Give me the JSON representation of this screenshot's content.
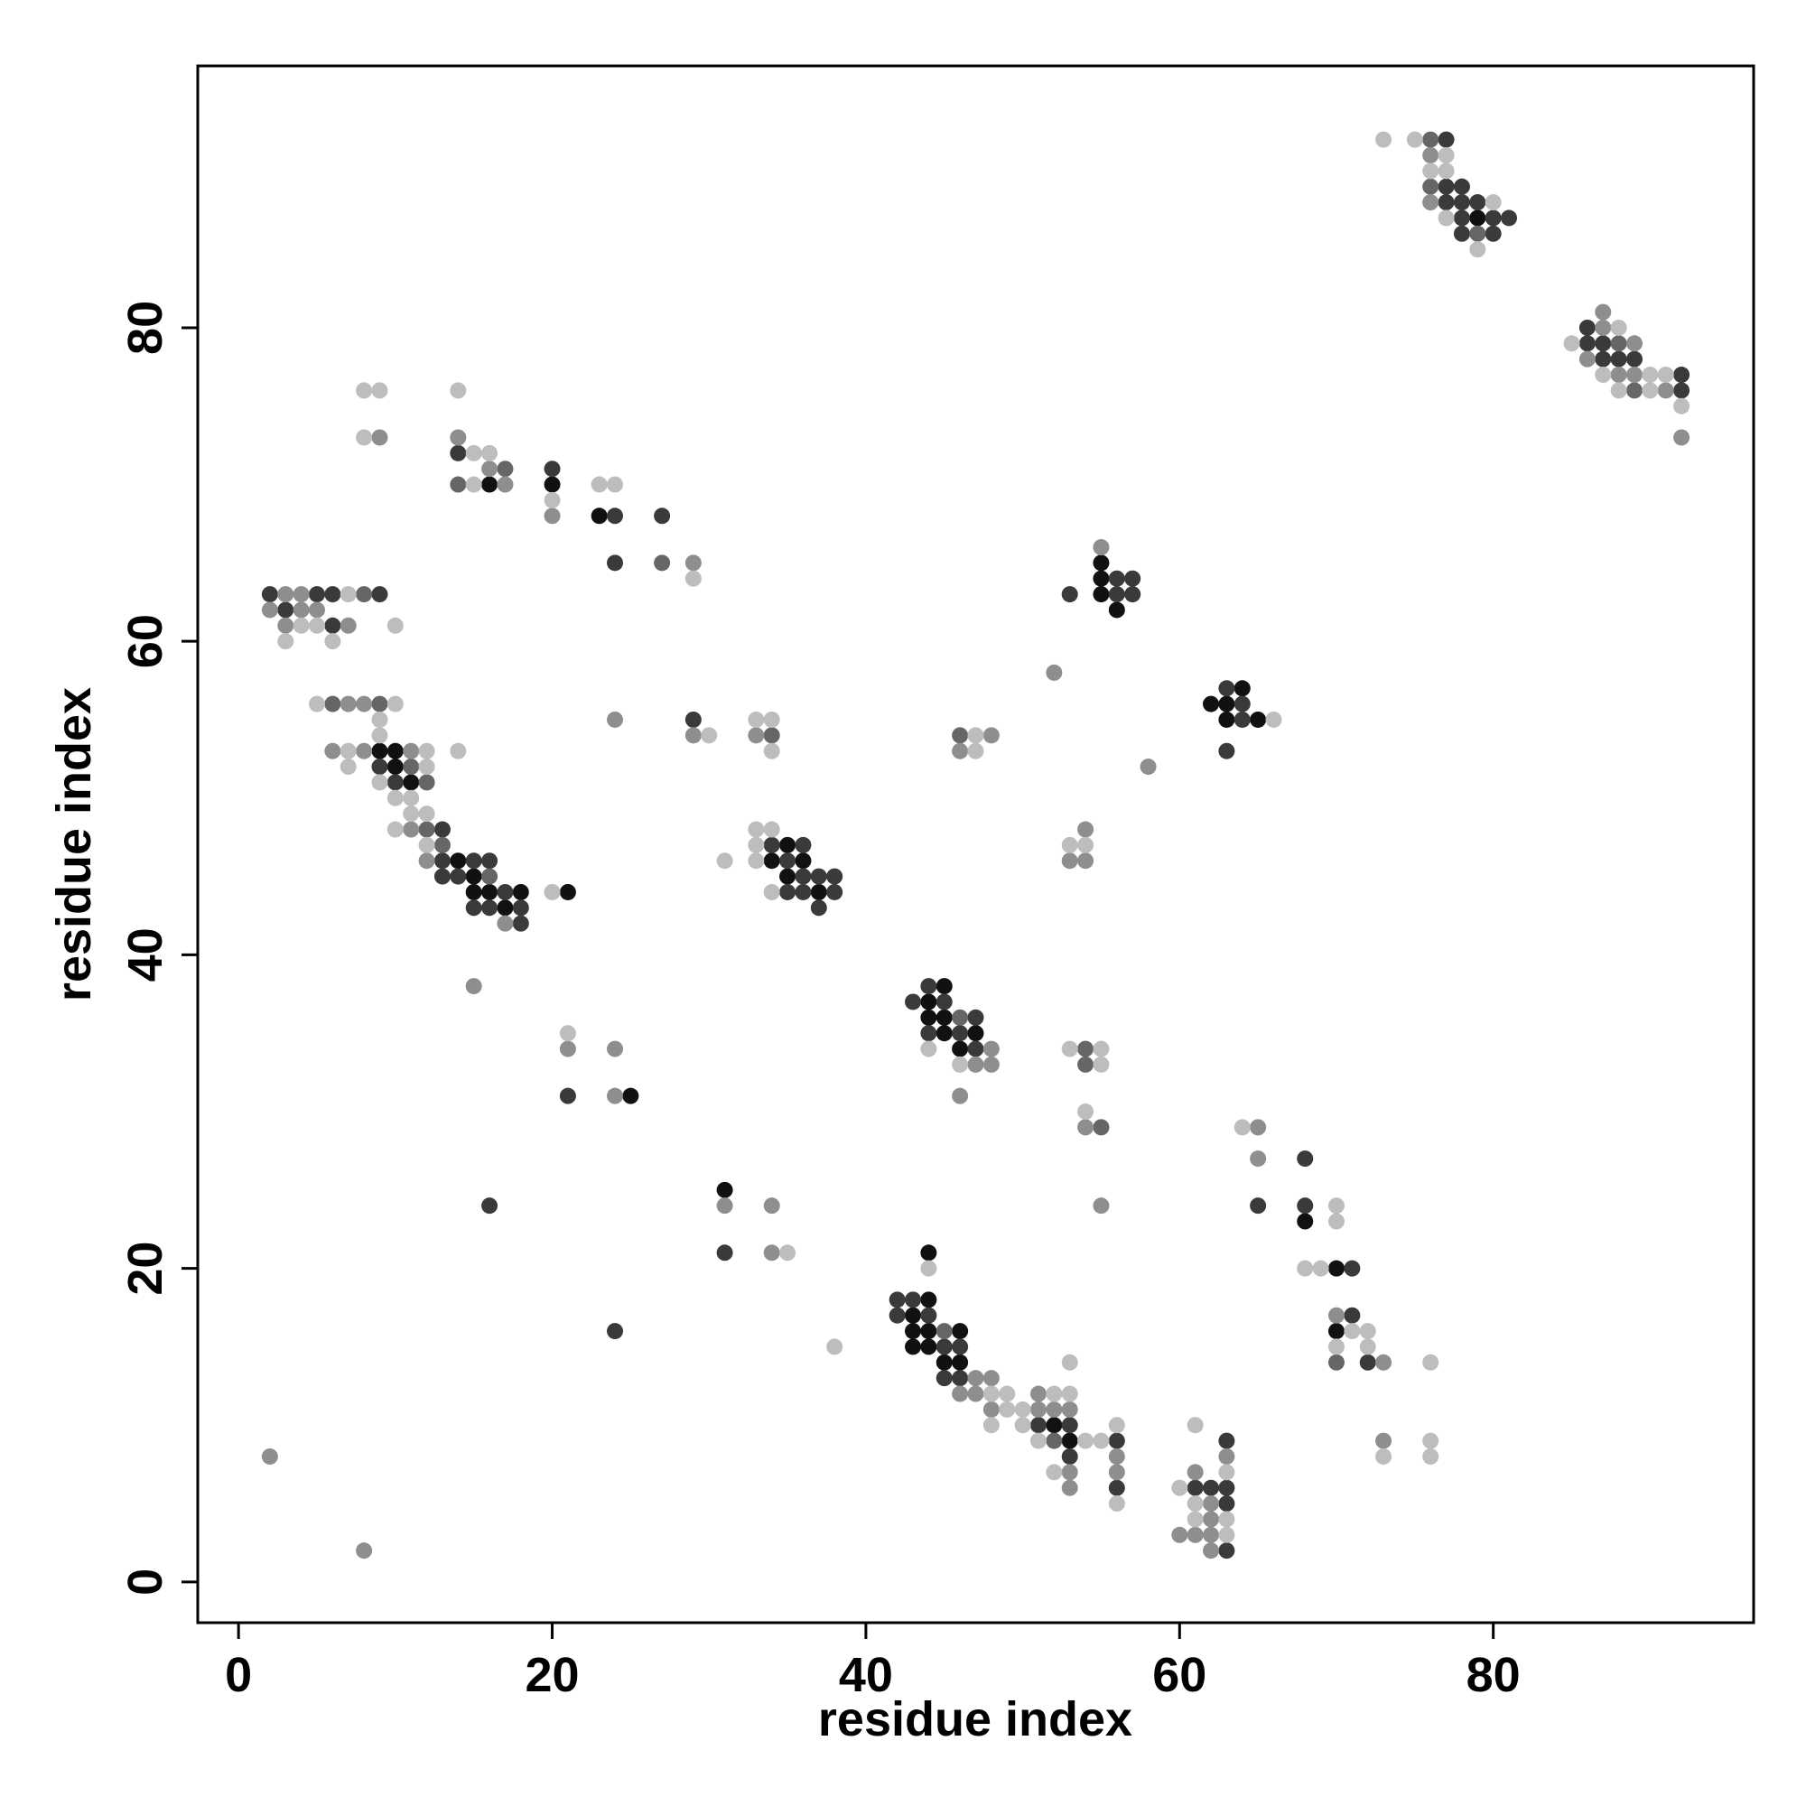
{
  "chart_data": {
    "type": "scatter",
    "xlabel": "residue index",
    "ylabel": "residue index",
    "xlim": [
      -2.6,
      96.6
    ],
    "ylim": [
      -2.6,
      96.7
    ],
    "xticks": [
      0,
      20,
      40,
      60,
      80
    ],
    "yticks": [
      0,
      20,
      40,
      60,
      80
    ],
    "grid": false,
    "series": [
      {
        "color": "#111111",
        "x": [
          79,
          16,
          20,
          23,
          9,
          10,
          10,
          11,
          14,
          15,
          15,
          16,
          18,
          21,
          17,
          34,
          35,
          36,
          35,
          37,
          55,
          55,
          55,
          56,
          64,
          62,
          63,
          63,
          65,
          45,
          44,
          44,
          45,
          45,
          47,
          46,
          25,
          31,
          68,
          70,
          70,
          44,
          44,
          43,
          43,
          44,
          46,
          43,
          44,
          45,
          46,
          52,
          53
        ],
        "y": [
          87,
          70,
          70,
          68,
          53,
          53,
          52,
          51,
          46,
          45,
          44,
          44,
          44,
          44,
          43,
          46,
          47,
          46,
          45,
          44,
          65,
          64,
          63,
          62,
          57,
          56,
          56,
          55,
          55,
          38,
          37,
          36,
          36,
          35,
          35,
          34,
          31,
          25,
          23,
          20,
          16,
          21,
          18,
          17,
          16,
          16,
          16,
          15,
          15,
          14,
          14,
          10,
          9
        ]
      },
      {
        "color": "#3a3a3a",
        "x": [
          77,
          77,
          78,
          77,
          78,
          79,
          78,
          80,
          81,
          78,
          80,
          86,
          86,
          87,
          87,
          88,
          89,
          92,
          92,
          14,
          20,
          24,
          27,
          24,
          2,
          5,
          6,
          9,
          3,
          6,
          9,
          10,
          13,
          13,
          15,
          16,
          13,
          14,
          17,
          15,
          16,
          18,
          18,
          29,
          34,
          36,
          35,
          36,
          37,
          38,
          35,
          36,
          38,
          37,
          56,
          57,
          53,
          56,
          57,
          63,
          64,
          64,
          63,
          44,
          43,
          45,
          47,
          44,
          46,
          47,
          21,
          16,
          31,
          65,
          68,
          68,
          71,
          71,
          72,
          24,
          42,
          43,
          42,
          44,
          45,
          46,
          45,
          46,
          51,
          53,
          56,
          53,
          56,
          63,
          61,
          62,
          63,
          63,
          63
        ],
        "y": [
          92,
          89,
          89,
          88,
          88,
          88,
          87,
          87,
          87,
          86,
          86,
          80,
          79,
          79,
          78,
          78,
          78,
          77,
          76,
          72,
          71,
          68,
          68,
          65,
          63,
          63,
          63,
          63,
          62,
          61,
          52,
          51,
          48,
          46,
          46,
          46,
          45,
          45,
          44,
          43,
          43,
          43,
          42,
          55,
          47,
          47,
          46,
          45,
          45,
          45,
          44,
          44,
          44,
          43,
          64,
          64,
          63,
          63,
          63,
          57,
          56,
          55,
          53,
          38,
          37,
          37,
          36,
          35,
          35,
          34,
          31,
          24,
          21,
          24,
          27,
          24,
          20,
          17,
          14,
          16,
          18,
          18,
          17,
          17,
          15,
          15,
          13,
          13,
          10,
          10,
          9,
          8,
          6,
          9,
          6,
          6,
          6,
          5,
          2
        ]
      },
      {
        "color": "#666666",
        "x": [
          76,
          76,
          79,
          88,
          89,
          17,
          14,
          8,
          6,
          9,
          11,
          12,
          12,
          13,
          16,
          34,
          46,
          27,
          46,
          54,
          54,
          55,
          70,
          45,
          52
        ],
        "y": [
          92,
          89,
          86,
          79,
          76,
          71,
          70,
          63,
          56,
          56,
          52,
          51,
          48,
          47,
          45,
          54,
          54,
          65,
          36,
          34,
          33,
          29,
          14,
          16,
          9
        ]
      },
      {
        "color": "#8e8e8e",
        "x": [
          76,
          76,
          87,
          87,
          89,
          86,
          88,
          89,
          91,
          92,
          9,
          14,
          16,
          17,
          20,
          29,
          3,
          4,
          2,
          4,
          5,
          3,
          7,
          7,
          8,
          6,
          8,
          11,
          11,
          12,
          17,
          24,
          29,
          33,
          46,
          48,
          54,
          53,
          54,
          52,
          58,
          55,
          48,
          47,
          48,
          46,
          54,
          55,
          21,
          24,
          24,
          31,
          34,
          34,
          2,
          8,
          15,
          65,
          65,
          70,
          73,
          73,
          47,
          48,
          46,
          47,
          48,
          51,
          52,
          53,
          51,
          56,
          53,
          56,
          53,
          63,
          61,
          62,
          62,
          60,
          61,
          62,
          62
        ],
        "y": [
          91,
          88,
          81,
          80,
          79,
          78,
          77,
          77,
          76,
          73,
          73,
          73,
          71,
          70,
          68,
          65,
          63,
          63,
          62,
          62,
          62,
          61,
          61,
          56,
          56,
          53,
          53,
          53,
          48,
          46,
          42,
          55,
          54,
          54,
          53,
          54,
          48,
          46,
          46,
          58,
          52,
          66,
          34,
          33,
          33,
          31,
          29,
          24,
          34,
          34,
          31,
          24,
          24,
          21,
          8,
          2,
          38,
          29,
          27,
          17,
          14,
          9,
          13,
          13,
          12,
          12,
          11,
          11,
          11,
          11,
          12,
          8,
          7,
          7,
          6,
          8,
          7,
          5,
          4,
          3,
          3,
          3,
          2
        ]
      },
      {
        "color": "#bdbdbd",
        "x": [
          73,
          75,
          77,
          76,
          77,
          80,
          77,
          79,
          85,
          88,
          87,
          90,
          91,
          88,
          90,
          92,
          8,
          9,
          14,
          8,
          15,
          16,
          15,
          20,
          23,
          24,
          29,
          7,
          4,
          5,
          10,
          3,
          6,
          5,
          10,
          9,
          9,
          7,
          12,
          14,
          7,
          12,
          9,
          10,
          11,
          11,
          12,
          10,
          12,
          20,
          33,
          34,
          30,
          34,
          47,
          47,
          66,
          33,
          34,
          33,
          31,
          33,
          34,
          53,
          54,
          44,
          46,
          53,
          55,
          55,
          54,
          21,
          35,
          38,
          64,
          70,
          70,
          68,
          69,
          71,
          72,
          70,
          72,
          76,
          76,
          73,
          76,
          44,
          48,
          49,
          49,
          50,
          48,
          50,
          52,
          53,
          53,
          56,
          51,
          54,
          55,
          52,
          56,
          61,
          63,
          60,
          61,
          61,
          63,
          63
        ],
        "y": [
          92,
          92,
          91,
          90,
          90,
          88,
          87,
          85,
          79,
          80,
          77,
          77,
          77,
          76,
          76,
          75,
          76,
          76,
          76,
          73,
          72,
          72,
          70,
          69,
          70,
          70,
          64,
          63,
          61,
          61,
          61,
          60,
          60,
          56,
          56,
          55,
          54,
          53,
          53,
          53,
          52,
          52,
          51,
          50,
          50,
          49,
          49,
          48,
          47,
          44,
          55,
          55,
          54,
          53,
          54,
          53,
          55,
          48,
          48,
          47,
          46,
          46,
          44,
          47,
          47,
          34,
          33,
          34,
          34,
          33,
          30,
          35,
          21,
          15,
          29,
          24,
          23,
          20,
          20,
          16,
          16,
          15,
          15,
          14,
          9,
          8,
          8,
          20,
          12,
          12,
          11,
          11,
          10,
          10,
          12,
          12,
          14,
          10,
          9,
          9,
          9,
          7,
          5,
          10,
          7,
          6,
          5,
          4,
          4,
          3
        ]
      }
    ]
  }
}
